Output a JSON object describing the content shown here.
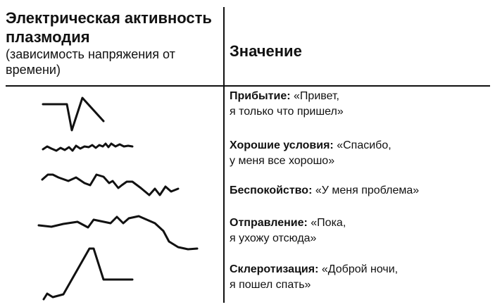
{
  "header": {
    "left_title": "Электрическая активность плазмодия",
    "left_subtitle": "(зависимость напряжения от времени)",
    "right_title": "Значение"
  },
  "rows": [
    {
      "label": "Прибытие:",
      "meaning_line1": "«Привет,",
      "meaning_line2": "я только что пришел»",
      "trace": "arrival-spike"
    },
    {
      "label": "Хорошие условия:",
      "meaning_line1": "«Спасибо,",
      "meaning_line2": "у меня все хорошо»",
      "trace": "small-regular-oscillation"
    },
    {
      "label": "Беспокойство:",
      "meaning_line1": "«У меня проблема»",
      "meaning_line2": "",
      "trace": "irregular-oscillation"
    },
    {
      "label": "Отправление:",
      "meaning_line1": "«Пока,",
      "meaning_line2": "я ухожу отсюда»",
      "trace": "slow-drop"
    },
    {
      "label": "Склеротизация:",
      "meaning_line1": "«Доброй ночи,",
      "meaning_line2": "я пошел спать»",
      "trace": "rise-and-plateau"
    }
  ]
}
